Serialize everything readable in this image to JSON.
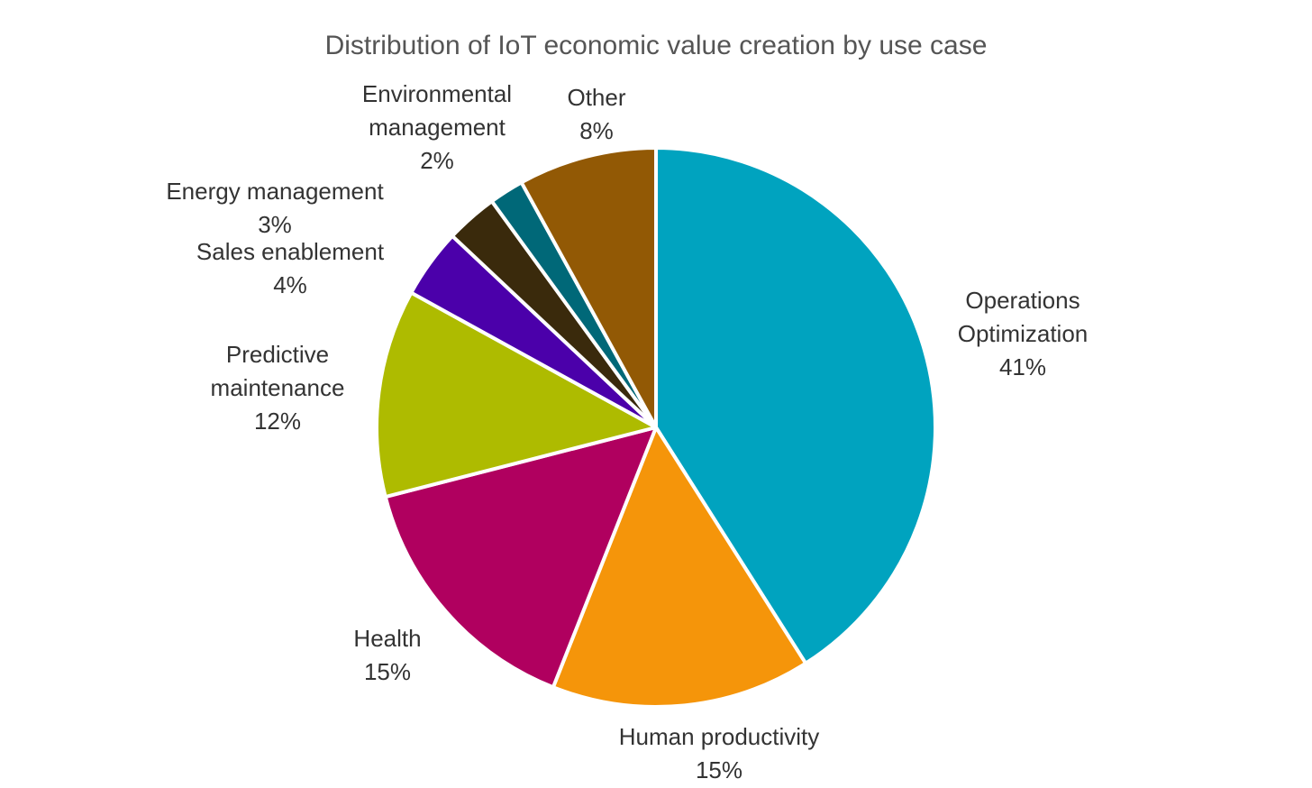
{
  "chart_data": {
    "type": "pie",
    "title": "Distribution of IoT economic value creation by use case",
    "slices": [
      {
        "name": "Operations Optimization",
        "label_lines": [
          "Operations",
          "Optimization"
        ],
        "value_label": "41%",
        "value": 41,
        "color": "#00A3BF"
      },
      {
        "name": "Human productivity",
        "label_lines": [
          "Human productivity"
        ],
        "value_label": "15%",
        "value": 15,
        "color": "#F5950A"
      },
      {
        "name": "Health",
        "label_lines": [
          "Health"
        ],
        "value_label": "15%",
        "value": 15,
        "color": "#B0005F"
      },
      {
        "name": "Predictive maintenance",
        "label_lines": [
          "Predictive",
          "maintenance"
        ],
        "value_label": "12%",
        "value": 12,
        "color": "#AEBB00"
      },
      {
        "name": "Sales enablement",
        "label_lines": [
          "Sales enablement"
        ],
        "value_label": "4%",
        "value": 4,
        "color": "#4B00AA"
      },
      {
        "name": "Energy management",
        "label_lines": [
          "Energy management"
        ],
        "value_label": "3%",
        "value": 3,
        "color": "#3A2A0C"
      },
      {
        "name": "Environmental management",
        "label_lines": [
          "Environmental",
          "management"
        ],
        "value_label": "2%",
        "value": 2,
        "color": "#006878"
      },
      {
        "name": "Other",
        "label_lines": [
          "Other"
        ],
        "value_label": "8%",
        "value": 8,
        "color": "#925905"
      }
    ]
  }
}
